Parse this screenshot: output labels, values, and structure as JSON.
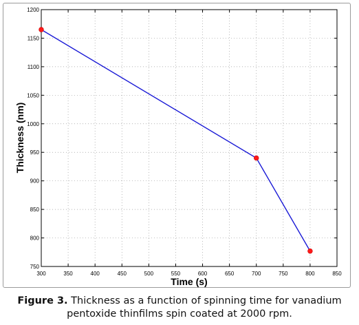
{
  "chart_data": {
    "type": "line",
    "title": "",
    "xlabel": "Time (s)",
    "ylabel": "Thickness (nm)",
    "xlim": [
      300,
      850
    ],
    "ylim": [
      750,
      1200
    ],
    "xticks": [
      300,
      350,
      400,
      450,
      500,
      550,
      600,
      650,
      700,
      750,
      800,
      850
    ],
    "yticks": [
      750,
      800,
      850,
      900,
      950,
      1000,
      1050,
      1100,
      1150,
      1200
    ],
    "grid": true,
    "series": [
      {
        "x": [
          300,
          700,
          800
        ],
        "y": [
          1165,
          940,
          777
        ],
        "line_color": "#1a1ad6",
        "marker_color": "#ff1a1a"
      }
    ]
  },
  "caption": {
    "lead": "Figure 3.",
    "line1": " Thickness as a function of spinning time for vanadium",
    "line2": "pentoxide thinfilms spin coated at 2000 rpm."
  }
}
